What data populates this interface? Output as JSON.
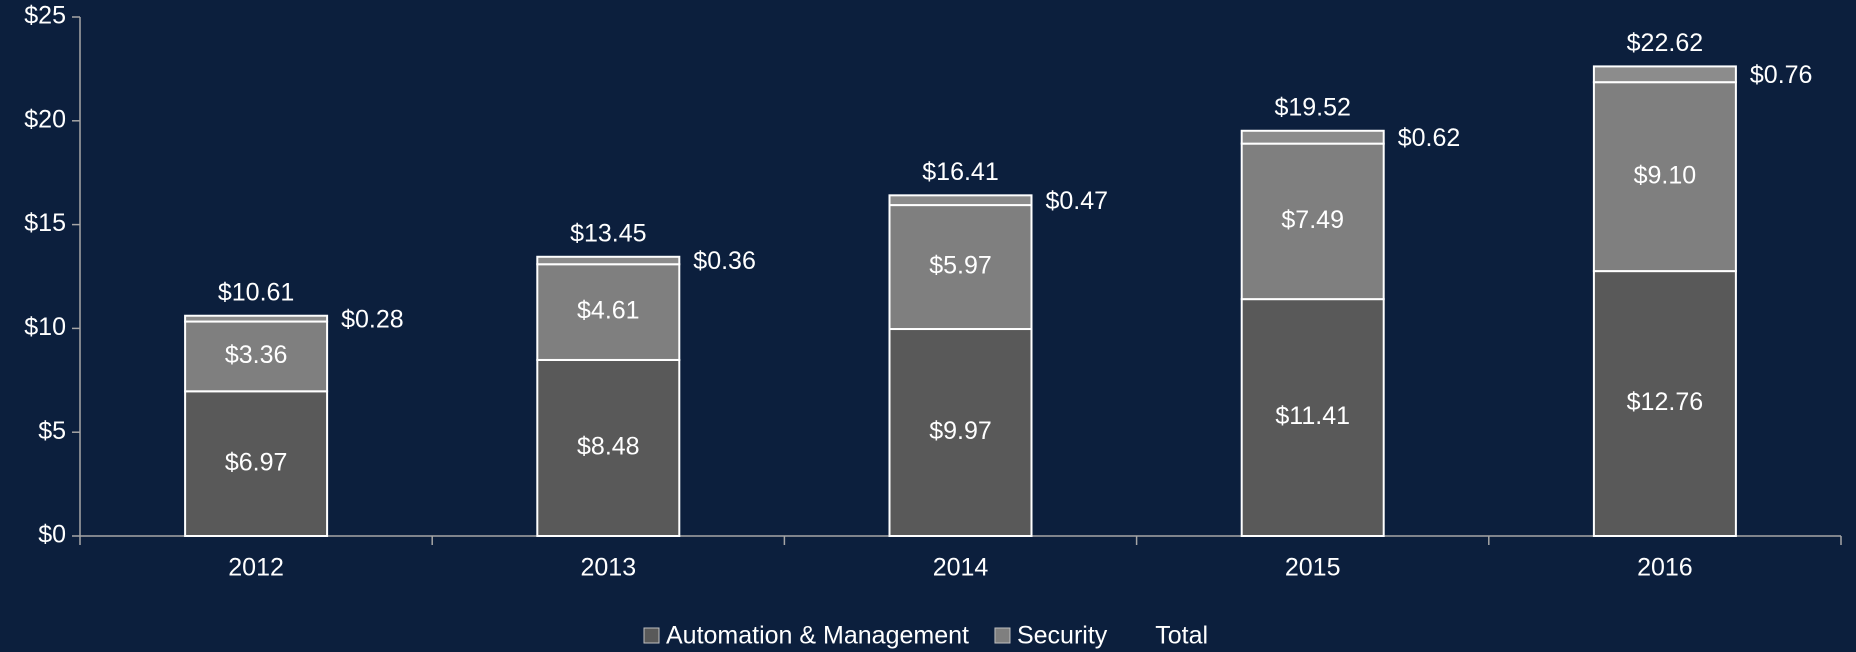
{
  "chart_data": {
    "type": "stacked-bar",
    "categories": [
      "2012",
      "2013",
      "2014",
      "2015",
      "2016"
    ],
    "series": [
      {
        "name": "Automation & Management",
        "color": "#595959",
        "values": [
          6.97,
          8.48,
          9.97,
          11.41,
          12.76
        ],
        "value_labels": [
          "$6.97",
          "$8.48",
          "$9.97",
          "$11.41",
          "$12.76"
        ]
      },
      {
        "name": "Security",
        "color": "#7f7f7f",
        "values": [
          3.36,
          4.61,
          5.97,
          7.49,
          9.1
        ],
        "value_labels": [
          "$3.36",
          "$4.61",
          "$5.97",
          "$7.49",
          "$9.10"
        ]
      },
      {
        "color": "#8c8c8c",
        "values": [
          0.28,
          0.36,
          0.47,
          0.62,
          0.76
        ],
        "value_labels": [
          "$0.28",
          "$0.36",
          "$0.47",
          "$0.62",
          "$0.76"
        ]
      },
      {
        "name": "Total",
        "values": [
          10.61,
          13.45,
          16.41,
          19.52,
          22.62
        ],
        "value_labels": [
          "$10.61",
          "$13.45",
          "$16.41",
          "$19.52",
          "$22.62"
        ]
      }
    ],
    "ylim": [
      0,
      25
    ],
    "yticks": [
      {
        "value": 0,
        "label": "$0"
      },
      {
        "value": 5,
        "label": "$5"
      },
      {
        "value": 10,
        "label": "$10"
      },
      {
        "value": 15,
        "label": "$15"
      },
      {
        "value": 20,
        "label": "$20"
      },
      {
        "value": 25,
        "label": "$25"
      }
    ]
  }
}
